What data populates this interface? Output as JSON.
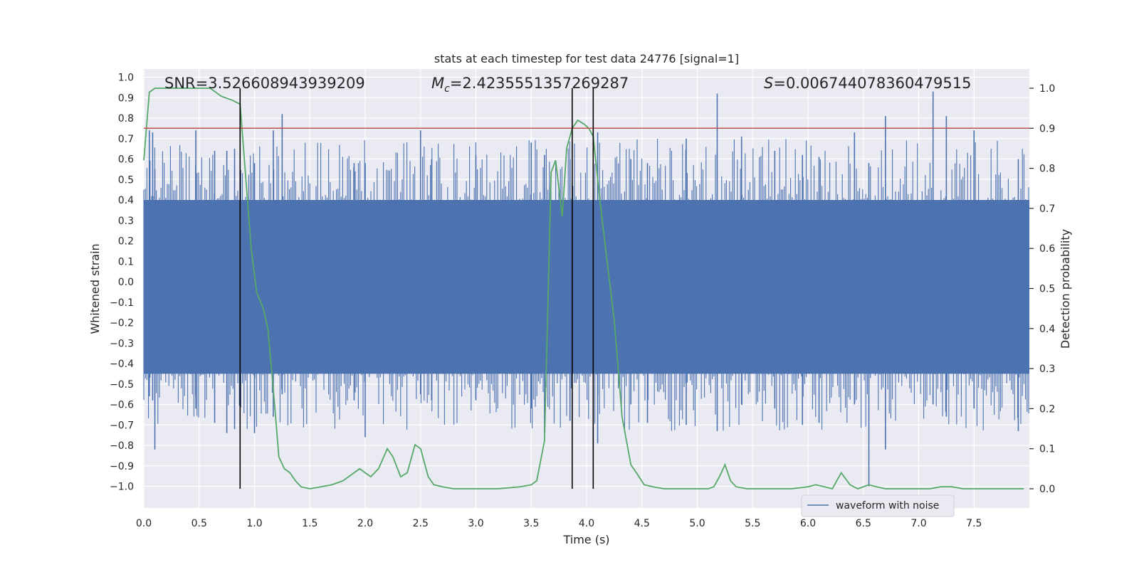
{
  "chart_data": {
    "type": "line",
    "title": "stats at each timestep for test data 24776 [signal=1]",
    "xlabel": "Time (s)",
    "ylabel": "Whitened strain",
    "y2label": "Detection probability",
    "xlim": [
      0.0,
      8.0
    ],
    "ylim": [
      -1.1,
      1.03
    ],
    "y2lim": [
      -0.05,
      1.03
    ],
    "xticks": [
      "0.0",
      "0.5",
      "1.0",
      "1.5",
      "2.0",
      "2.5",
      "3.0",
      "3.5",
      "4.0",
      "4.5",
      "5.0",
      "5.5",
      "6.0",
      "6.5",
      "7.0",
      "7.5"
    ],
    "xtick_values": [
      0,
      0.5,
      1,
      1.5,
      2,
      2.5,
      3,
      3.5,
      4,
      4.5,
      5,
      5.5,
      6,
      6.5,
      7,
      7.5
    ],
    "yticks": [
      "1.0",
      "0.9",
      "0.8",
      "0.7",
      "0.6",
      "0.5",
      "0.4",
      "0.3",
      "0.2",
      "0.1",
      "0.0",
      "−0.1",
      "−0.2",
      "−0.3",
      "−0.4",
      "−0.5",
      "−0.6",
      "−0.7",
      "−0.8",
      "−0.9",
      "−1.0"
    ],
    "ytick_values": [
      1.0,
      0.9,
      0.8,
      0.7,
      0.6,
      0.5,
      0.4,
      0.3,
      0.2,
      0.1,
      0.0,
      -0.1,
      -0.2,
      -0.3,
      -0.4,
      -0.5,
      -0.6,
      -0.7,
      -0.8,
      -0.9,
      -1.0
    ],
    "y2ticks": [
      "1.0",
      "0.9",
      "0.8",
      "0.7",
      "0.6",
      "0.5",
      "0.4",
      "0.3",
      "0.2",
      "0.1",
      "0.0"
    ],
    "y2tick_values": [
      1.0,
      0.9,
      0.8,
      0.7,
      0.6,
      0.5,
      0.4,
      0.3,
      0.2,
      0.1,
      0.0
    ],
    "grid": true,
    "legend": {
      "placement": "lower-right",
      "entries": [
        "waveform with noise"
      ]
    },
    "annotations": {
      "snr": "SNR=3.526608943939209",
      "mc_symbol": "M",
      "mc_sub": "c",
      "mc_value": "=2.4235551357269287",
      "s_symbol": "S",
      "s_value": "=0.006744078360479515"
    },
    "threshold": {
      "axis": "right",
      "value": 0.9,
      "color": "#c44e52"
    },
    "vertical_markers": [
      0.87,
      3.87,
      4.06
    ],
    "series": [
      {
        "name": "waveform with noise",
        "axis": "left",
        "color": "#4c72b0",
        "band_envelope": {
          "upper": 0.4,
          "lower": -0.45
        },
        "spike_peaks": [
          {
            "t": 0.05,
            "up": 0.74,
            "down": -0.56
          },
          {
            "t": 0.08,
            "up": 0.73,
            "down": -0.58
          },
          {
            "t": 0.1,
            "up": 0.55,
            "down": -0.82
          },
          {
            "t": 0.47,
            "up": 0.74,
            "down": -0.62
          },
          {
            "t": 0.64,
            "up": 0.64,
            "down": -0.69
          },
          {
            "t": 0.75,
            "up": 0.64,
            "down": -0.74
          },
          {
            "t": 0.82,
            "up": 0.65,
            "down": -0.72
          },
          {
            "t": 1.0,
            "up": 0.58,
            "down": -0.74
          },
          {
            "t": 1.17,
            "up": 0.74,
            "down": -0.66
          },
          {
            "t": 1.25,
            "up": 0.82,
            "down": -0.55
          },
          {
            "t": 1.9,
            "up": 0.58,
            "down": -0.58
          },
          {
            "t": 2.0,
            "up": 0.58,
            "down": -0.76
          },
          {
            "t": 2.5,
            "up": 0.74,
            "down": -0.55
          },
          {
            "t": 2.6,
            "up": 0.6,
            "down": -0.58
          },
          {
            "t": 3.0,
            "up": 0.62,
            "down": -0.58
          },
          {
            "t": 3.5,
            "up": 0.68,
            "down": -0.62
          },
          {
            "t": 3.62,
            "up": 0.62,
            "down": -0.74
          },
          {
            "t": 3.85,
            "up": 0.6,
            "down": -0.68
          },
          {
            "t": 4.1,
            "up": 0.73,
            "down": -0.79
          },
          {
            "t": 4.4,
            "up": 0.6,
            "down": -0.6
          },
          {
            "t": 4.55,
            "up": 0.58,
            "down": -0.69
          },
          {
            "t": 4.9,
            "up": 0.7,
            "down": -0.7
          },
          {
            "t": 5.18,
            "up": 0.92,
            "down": -0.73
          },
          {
            "t": 5.4,
            "up": 0.71,
            "down": -0.6
          },
          {
            "t": 5.7,
            "up": 0.64,
            "down": -0.62
          },
          {
            "t": 5.95,
            "up": 0.62,
            "down": -0.7
          },
          {
            "t": 6.1,
            "up": 0.61,
            "down": -0.69
          },
          {
            "t": 6.42,
            "up": 0.73,
            "down": -0.6
          },
          {
            "t": 6.55,
            "up": 0.58,
            "down": -1.0
          },
          {
            "t": 6.7,
            "up": 0.81,
            "down": -0.82
          },
          {
            "t": 7.13,
            "up": 0.93,
            "down": -0.6
          },
          {
            "t": 7.25,
            "up": 0.81,
            "down": -0.66
          },
          {
            "t": 7.5,
            "up": 0.74,
            "down": -0.62
          },
          {
            "t": 7.9,
            "up": 0.6,
            "down": -0.73
          }
        ]
      },
      {
        "name": "",
        "axis": "right",
        "color": "#55a868",
        "x": [
          0.0,
          0.05,
          0.1,
          0.2,
          0.3,
          0.4,
          0.5,
          0.6,
          0.7,
          0.8,
          0.87,
          0.92,
          0.97,
          1.02,
          1.08,
          1.12,
          1.17,
          1.22,
          1.27,
          1.32,
          1.37,
          1.42,
          1.5,
          1.6,
          1.7,
          1.8,
          1.9,
          1.95,
          2.0,
          2.05,
          2.12,
          2.2,
          2.25,
          2.32,
          2.38,
          2.45,
          2.5,
          2.57,
          2.62,
          2.7,
          2.8,
          2.9,
          3.0,
          3.2,
          3.4,
          3.5,
          3.55,
          3.62,
          3.68,
          3.72,
          3.78,
          3.82,
          3.87,
          3.92,
          3.98,
          4.02,
          4.06,
          4.12,
          4.18,
          4.25,
          4.32,
          4.4,
          4.45,
          4.52,
          4.6,
          4.7,
          4.8,
          4.9,
          5.0,
          5.1,
          5.15,
          5.2,
          5.25,
          5.3,
          5.35,
          5.45,
          5.55,
          5.65,
          5.75,
          5.85,
          6.0,
          6.07,
          6.15,
          6.22,
          6.3,
          6.38,
          6.45,
          6.55,
          6.62,
          6.7,
          6.8,
          6.95,
          7.1,
          7.2,
          7.3,
          7.4,
          7.5,
          7.6,
          7.7,
          7.8,
          7.95
        ],
        "y": [
          0.82,
          0.99,
          1.0,
          1.0,
          1.0,
          1.0,
          1.0,
          1.0,
          0.98,
          0.97,
          0.96,
          0.78,
          0.6,
          0.49,
          0.45,
          0.4,
          0.25,
          0.08,
          0.05,
          0.04,
          0.02,
          0.005,
          0.0,
          0.005,
          0.01,
          0.02,
          0.04,
          0.05,
          0.04,
          0.03,
          0.05,
          0.1,
          0.08,
          0.03,
          0.04,
          0.11,
          0.1,
          0.03,
          0.01,
          0.005,
          0.0,
          0.0,
          0.0,
          0.0,
          0.005,
          0.01,
          0.02,
          0.12,
          0.79,
          0.82,
          0.68,
          0.85,
          0.9,
          0.92,
          0.91,
          0.9,
          0.88,
          0.72,
          0.58,
          0.42,
          0.18,
          0.06,
          0.04,
          0.01,
          0.005,
          0.0,
          0.0,
          0.0,
          0.0,
          0.0,
          0.005,
          0.03,
          0.06,
          0.02,
          0.005,
          0.0,
          0.0,
          0.0,
          0.0,
          0.0,
          0.005,
          0.01,
          0.005,
          0.0,
          0.04,
          0.01,
          0.0,
          0.01,
          0.005,
          0.0,
          0.0,
          0.0,
          0.0,
          0.005,
          0.005,
          0.0,
          0.0,
          0.0,
          0.0,
          0.0,
          0.0
        ]
      }
    ]
  }
}
